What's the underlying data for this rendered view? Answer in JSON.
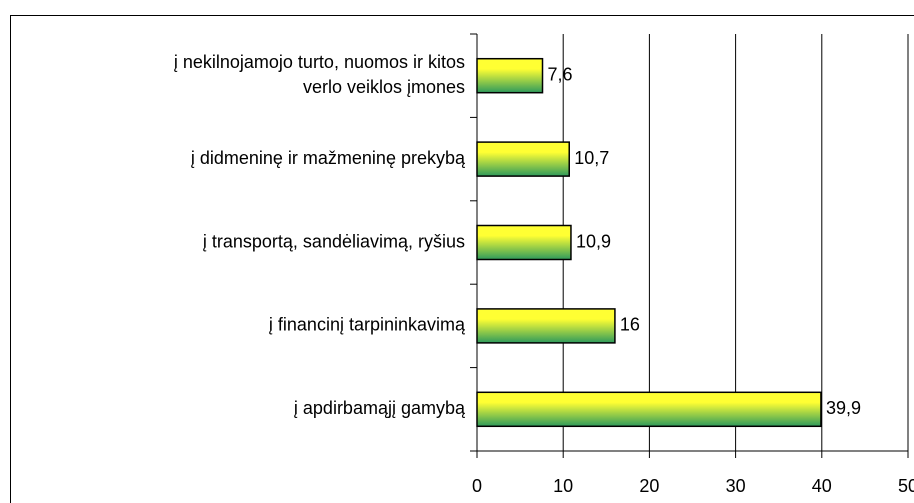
{
  "chart_data": {
    "type": "bar",
    "orientation": "horizontal",
    "categories": [
      [
        "į nekilnojamojo turto, nuomos ir kitos",
        "verlo veiklos įmones"
      ],
      "į didmeninę ir mažmeninę prekybą",
      "į transportą, sandėliavimą, ryšius",
      "į financinį tarpininkavimą",
      "į apdirbamąjį gamybą"
    ],
    "values": [
      7.6,
      10.7,
      10.9,
      16,
      39.9
    ],
    "value_labels": [
      "7,6",
      "10,7",
      "10,9",
      "16",
      "39,9"
    ],
    "colors": [
      "#ffff33",
      "#2e9a5c"
    ],
    "xlim": [
      0,
      50
    ],
    "xticks": [
      0,
      10,
      20,
      30,
      40,
      50
    ],
    "grid": true
  }
}
